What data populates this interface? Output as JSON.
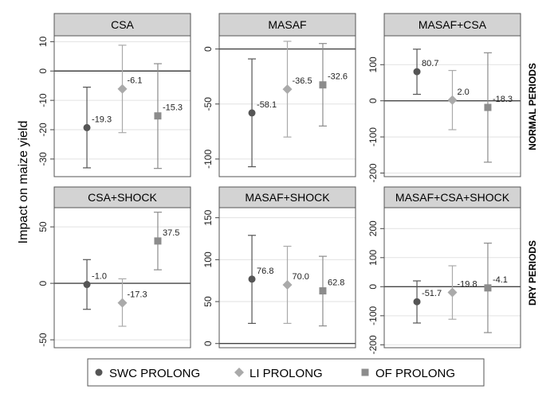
{
  "chart_data": {
    "type": "scatter",
    "ylabel": "Impact on maize yield",
    "row_labels": [
      "NORMAL PERIODS",
      "DRY PERIODS"
    ],
    "series": [
      {
        "name": "SWC PROLONG",
        "color": "#555555",
        "marker": "circle"
      },
      {
        "name": "LI PROLONG",
        "color": "#aaaaaa",
        "marker": "diamond"
      },
      {
        "name": "OF PROLONG",
        "color": "#8c8c8c",
        "marker": "square"
      }
    ],
    "panels": [
      {
        "title": "CSA",
        "row": 0,
        "col": 0,
        "ylim": [
          -36,
          12
        ],
        "yticks": [
          -30,
          -20,
          -10,
          0,
          10
        ],
        "points": [
          {
            "value": -19.3,
            "low": -33,
            "high": -5.5
          },
          {
            "value": -6.1,
            "low": -21,
            "high": 8.8
          },
          {
            "value": -15.3,
            "low": -33.2,
            "high": 2.5
          }
        ]
      },
      {
        "title": "MASAF",
        "row": 0,
        "col": 1,
        "ylim": [
          -116,
          12
        ],
        "yticks": [
          -100,
          -50,
          0
        ],
        "points": [
          {
            "value": -58.1,
            "low": -107,
            "high": -9
          },
          {
            "value": -36.5,
            "low": -80,
            "high": 7
          },
          {
            "value": -32.6,
            "low": -70,
            "high": 5
          }
        ]
      },
      {
        "title": "MASAF+CSA",
        "row": 0,
        "col": 2,
        "ylim": [
          -210,
          180
        ],
        "yticks": [
          -200,
          -100,
          0,
          100
        ],
        "points": [
          {
            "value": 80.7,
            "low": 18,
            "high": 143
          },
          {
            "value": 2.0,
            "low": -80,
            "high": 84
          },
          {
            "value": -18.3,
            "low": -170,
            "high": 133
          }
        ]
      },
      {
        "title": "CSA+SHOCK",
        "row": 1,
        "col": 0,
        "ylim": [
          -57,
          67
        ],
        "yticks": [
          -50,
          0,
          50
        ],
        "points": [
          {
            "value": -1.0,
            "low": -23,
            "high": 21
          },
          {
            "value": -17.3,
            "low": -38,
            "high": 4
          },
          {
            "value": 37.5,
            "low": 12,
            "high": 63
          }
        ]
      },
      {
        "title": "MASAF+SHOCK",
        "row": 1,
        "col": 1,
        "ylim": [
          -5,
          162
        ],
        "yticks": [
          0,
          50,
          100,
          150
        ],
        "points": [
          {
            "value": 76.8,
            "low": 24,
            "high": 129
          },
          {
            "value": 70.0,
            "low": 24,
            "high": 116
          },
          {
            "value": 62.8,
            "low": 21,
            "high": 104
          }
        ]
      },
      {
        "title": "MASAF+CSA+SHOCK",
        "row": 1,
        "col": 2,
        "ylim": [
          -210,
          272
        ],
        "yticks": [
          -200,
          -100,
          0,
          100,
          200
        ],
        "points": [
          {
            "value": -51.7,
            "low": -125,
            "high": 20
          },
          {
            "value": -19.8,
            "low": -112,
            "high": 72
          },
          {
            "value": -4.1,
            "low": -158,
            "high": 150
          }
        ]
      }
    ]
  }
}
